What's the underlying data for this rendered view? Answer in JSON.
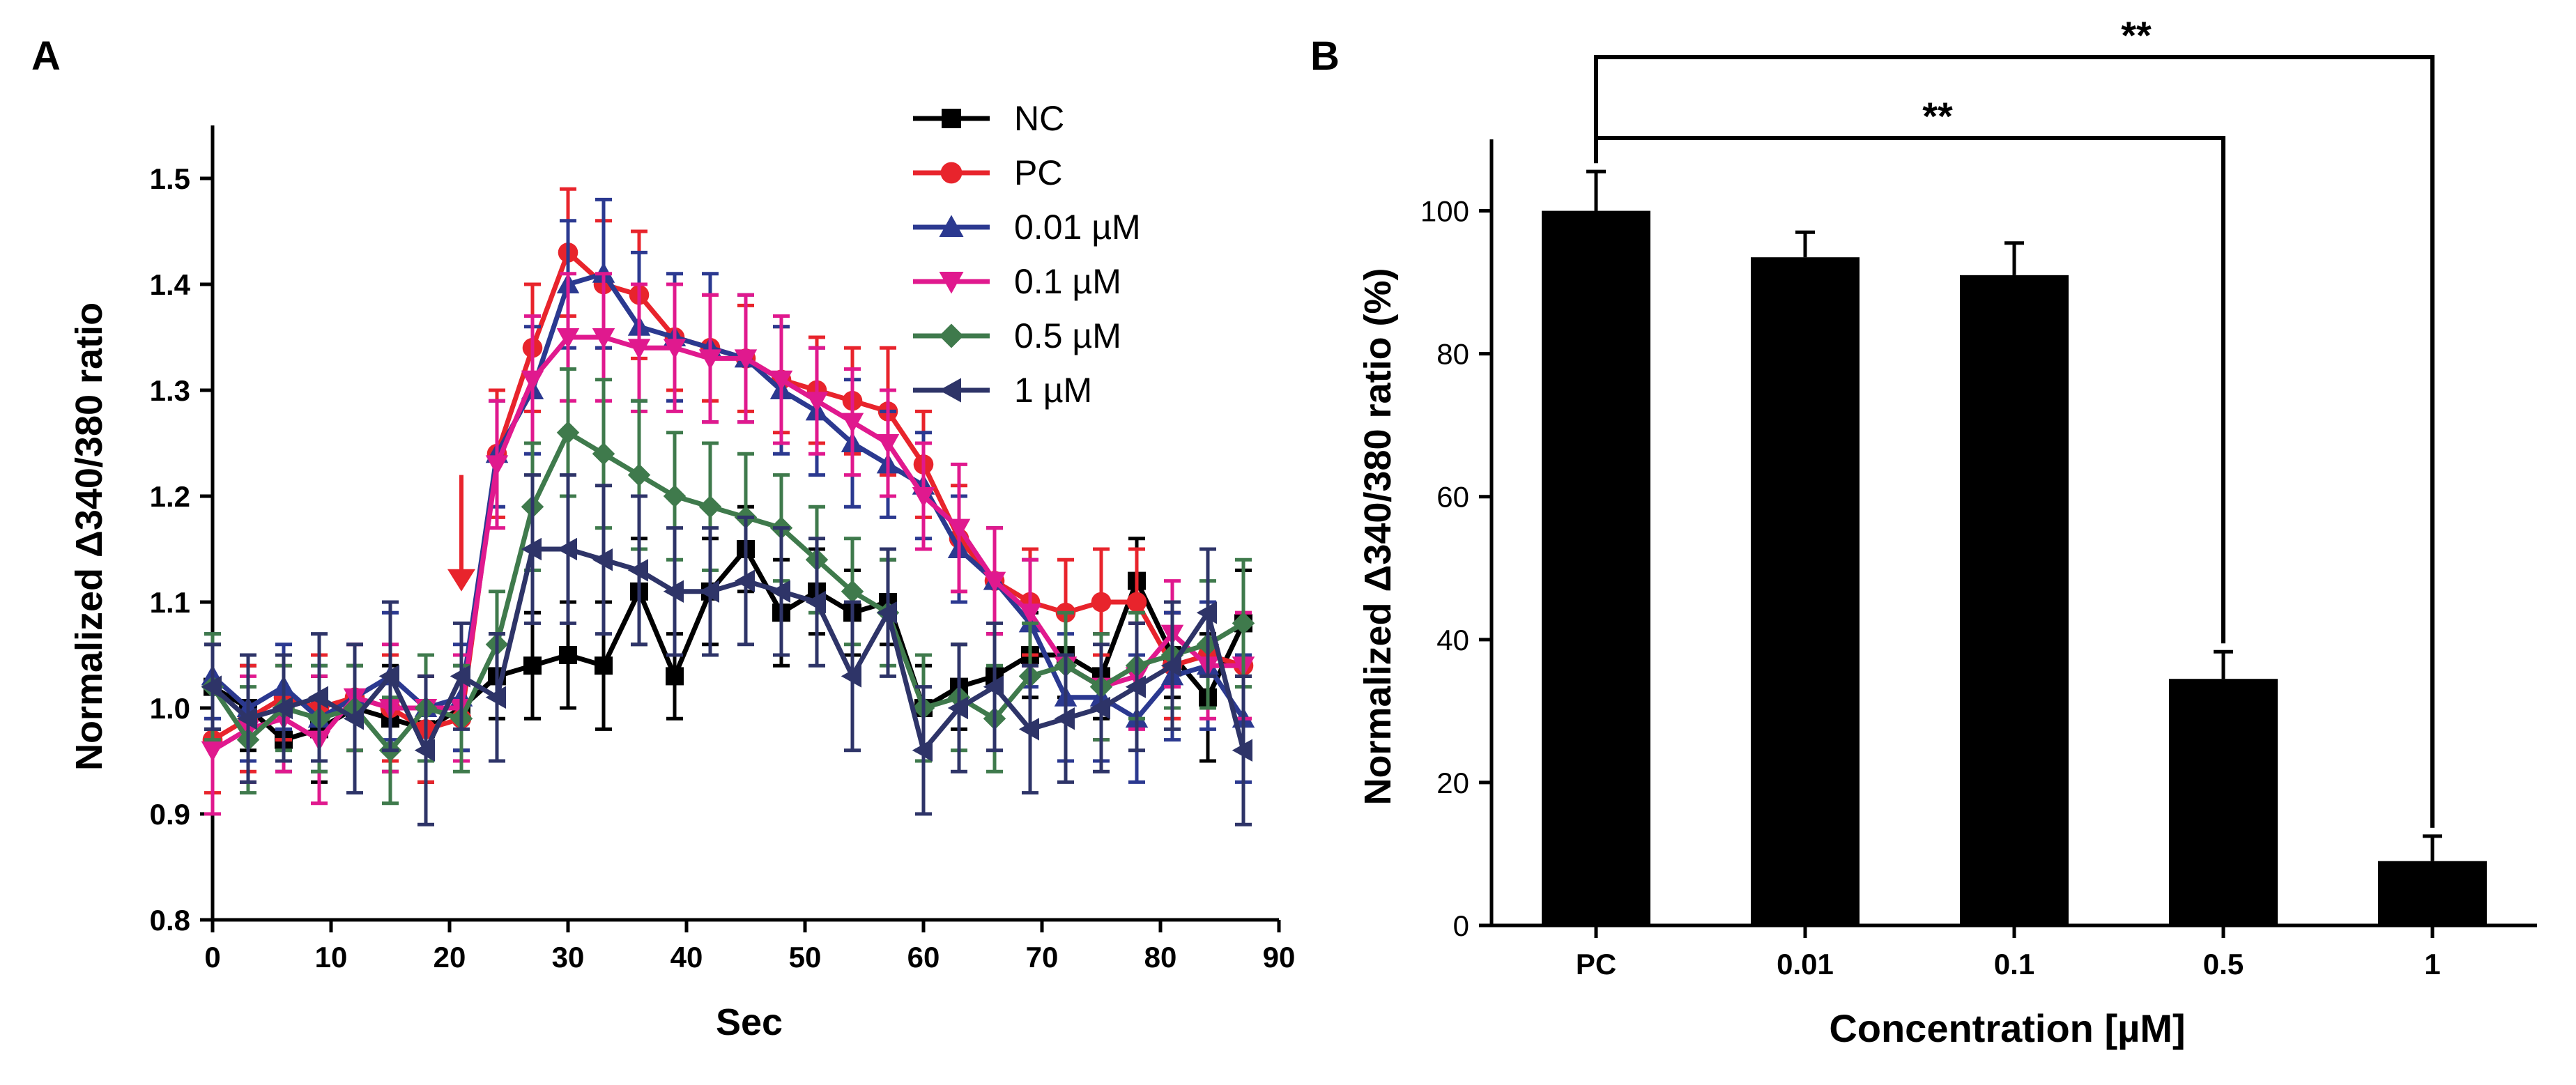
{
  "panels": {
    "a_label": "A",
    "b_label": "B"
  },
  "chart_data": [
    {
      "type": "line",
      "panel": "A",
      "title": "",
      "xlabel": "Sec",
      "ylabel": "Normalized Δ340/380 ratio",
      "xlim": [
        0,
        90
      ],
      "ylim": [
        0.8,
        1.55
      ],
      "xticks": [
        0,
        10,
        20,
        30,
        40,
        50,
        60,
        70,
        80,
        90
      ],
      "yticks": [
        0.8,
        0.9,
        1.0,
        1.1,
        1.2,
        1.3,
        1.4,
        1.5
      ],
      "x": [
        0,
        3,
        6,
        9,
        12,
        15,
        18,
        21,
        24,
        27,
        30,
        33,
        36,
        39,
        42,
        45,
        48,
        51,
        54,
        57,
        60,
        63,
        66,
        69,
        72,
        75,
        78,
        81,
        84,
        87
      ],
      "legend_position": "top-right",
      "stimulus_arrow_x": 21,
      "series": [
        {
          "name": "NC",
          "color": "#000000",
          "marker": "square",
          "values": [
            1.02,
            1.0,
            0.97,
            0.98,
            1.0,
            0.99,
            0.98,
            1.0,
            1.03,
            1.04,
            1.05,
            1.04,
            1.11,
            1.03,
            1.11,
            1.15,
            1.09,
            1.11,
            1.09,
            1.1,
            1.0,
            1.02,
            1.03,
            1.05,
            1.05,
            1.03,
            1.12,
            1.05,
            1.01,
            1.08
          ],
          "errors": [
            0.04,
            0.04,
            0.03,
            0.05,
            0.04,
            0.05,
            0.05,
            0.04,
            0.04,
            0.05,
            0.05,
            0.06,
            0.05,
            0.04,
            0.05,
            0.04,
            0.05,
            0.04,
            0.04,
            0.04,
            0.04,
            0.04,
            0.04,
            0.04,
            0.04,
            0.04,
            0.04,
            0.04,
            0.06,
            0.05
          ]
        },
        {
          "name": "PC",
          "color": "#e8242c",
          "marker": "circle",
          "values": [
            0.97,
            0.99,
            1.01,
            1.0,
            1.01,
            1.0,
            0.98,
            0.99,
            1.24,
            1.34,
            1.43,
            1.4,
            1.39,
            1.35,
            1.34,
            1.33,
            1.31,
            1.3,
            1.29,
            1.28,
            1.23,
            1.16,
            1.12,
            1.1,
            1.09,
            1.1,
            1.1,
            1.04,
            1.05,
            1.04
          ],
          "errors": [
            0.05,
            0.05,
            0.04,
            0.05,
            0.05,
            0.05,
            0.05,
            0.04,
            0.06,
            0.06,
            0.06,
            0.06,
            0.06,
            0.05,
            0.05,
            0.05,
            0.05,
            0.05,
            0.05,
            0.06,
            0.05,
            0.05,
            0.05,
            0.05,
            0.05,
            0.05,
            0.05,
            0.05,
            0.05,
            0.05
          ]
        },
        {
          "name": "0.01 µM",
          "color": "#2b3990",
          "marker": "triangle-up",
          "values": [
            1.03,
            1.0,
            1.02,
            0.99,
            1.01,
            1.03,
            1.0,
            1.01,
            1.24,
            1.3,
            1.4,
            1.41,
            1.36,
            1.35,
            1.34,
            1.33,
            1.3,
            1.28,
            1.25,
            1.23,
            1.21,
            1.15,
            1.12,
            1.08,
            1.01,
            1.01,
            0.99,
            1.03,
            1.04,
            0.99
          ],
          "errors": [
            0.04,
            0.05,
            0.04,
            0.05,
            0.05,
            0.06,
            0.05,
            0.05,
            0.05,
            0.06,
            0.06,
            0.07,
            0.07,
            0.06,
            0.07,
            0.06,
            0.06,
            0.06,
            0.06,
            0.05,
            0.05,
            0.05,
            0.05,
            0.06,
            0.06,
            0.06,
            0.06,
            0.06,
            0.06,
            0.06
          ]
        },
        {
          "name": "0.1 µM",
          "color": "#e0198e",
          "marker": "triangle-down",
          "values": [
            0.96,
            0.98,
            0.99,
            0.97,
            1.01,
            1.0,
            1.0,
            1.0,
            1.23,
            1.31,
            1.35,
            1.35,
            1.34,
            1.34,
            1.33,
            1.33,
            1.31,
            1.29,
            1.27,
            1.25,
            1.2,
            1.17,
            1.12,
            1.09,
            1.04,
            1.02,
            1.03,
            1.07,
            1.04,
            1.04
          ],
          "errors": [
            0.06,
            0.05,
            0.05,
            0.06,
            0.05,
            0.06,
            0.05,
            0.05,
            0.06,
            0.06,
            0.06,
            0.06,
            0.06,
            0.06,
            0.06,
            0.06,
            0.06,
            0.05,
            0.05,
            0.05,
            0.05,
            0.06,
            0.05,
            0.05,
            0.05,
            0.05,
            0.05,
            0.05,
            0.05,
            0.05
          ]
        },
        {
          "name": "0.5 µM",
          "color": "#3f7a4c",
          "marker": "diamond",
          "values": [
            1.02,
            0.97,
            1.0,
            0.99,
            1.0,
            0.96,
            1.0,
            0.99,
            1.06,
            1.19,
            1.26,
            1.24,
            1.22,
            1.2,
            1.19,
            1.18,
            1.17,
            1.14,
            1.11,
            1.09,
            1.0,
            1.01,
            0.99,
            1.03,
            1.04,
            1.02,
            1.04,
            1.05,
            1.06,
            1.08
          ],
          "errors": [
            0.05,
            0.05,
            0.04,
            0.05,
            0.04,
            0.05,
            0.05,
            0.05,
            0.05,
            0.06,
            0.06,
            0.07,
            0.07,
            0.06,
            0.06,
            0.06,
            0.05,
            0.05,
            0.05,
            0.05,
            0.05,
            0.05,
            0.05,
            0.05,
            0.05,
            0.05,
            0.05,
            0.05,
            0.06,
            0.06
          ]
        },
        {
          "name": "1 µM",
          "color": "#2e3468",
          "marker": "triangle-left",
          "values": [
            1.02,
            0.99,
            1.0,
            1.01,
            0.99,
            1.03,
            0.96,
            1.03,
            1.01,
            1.15,
            1.15,
            1.14,
            1.13,
            1.11,
            1.11,
            1.12,
            1.11,
            1.1,
            1.03,
            1.09,
            0.96,
            1.0,
            1.02,
            0.98,
            0.99,
            1.0,
            1.02,
            1.04,
            1.09,
            0.96
          ],
          "errors": [
            0.04,
            0.06,
            0.05,
            0.06,
            0.07,
            0.07,
            0.07,
            0.05,
            0.06,
            0.07,
            0.07,
            0.07,
            0.07,
            0.06,
            0.06,
            0.06,
            0.06,
            0.06,
            0.07,
            0.06,
            0.06,
            0.06,
            0.06,
            0.06,
            0.06,
            0.06,
            0.06,
            0.06,
            0.06,
            0.07
          ]
        }
      ]
    },
    {
      "type": "bar",
      "panel": "B",
      "title": "",
      "xlabel": "Concentration [µM]",
      "ylabel": "Normalized Δ340/380 ratio (%)",
      "ylim": [
        0,
        110
      ],
      "yticks": [
        0,
        20,
        40,
        60,
        80,
        100
      ],
      "categories": [
        "PC",
        "0.01",
        "0.1",
        "0.5",
        "1"
      ],
      "values": [
        100,
        93.5,
        91,
        34.5,
        9
      ],
      "errors": [
        5.5,
        3.5,
        4.5,
        3.8,
        3.5
      ],
      "bar_color": "#000000",
      "significance": [
        {
          "from": "PC",
          "to": "0.5",
          "label": "**"
        },
        {
          "from": "PC",
          "to": "1",
          "label": "**"
        }
      ]
    }
  ]
}
